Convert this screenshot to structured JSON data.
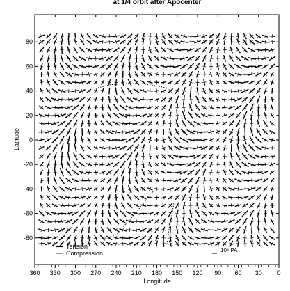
{
  "chart_data": {
    "type": "vector-field",
    "title": "at 1/4 orbit after Apocenter",
    "xlabel": "Longitude",
    "ylabel": "Latitude",
    "xlim": [
      360,
      0
    ],
    "ylim": [
      -90,
      90
    ],
    "x_ticks": [
      360,
      330,
      300,
      270,
      240,
      210,
      180,
      150,
      120,
      90,
      60,
      30,
      0
    ],
    "y_ticks": [
      80,
      60,
      40,
      20,
      0,
      -20,
      -40,
      -60,
      -80
    ],
    "grid": false,
    "legend": {
      "placement": "bottom-left",
      "entries": [
        {
          "name": "Tension",
          "style": "thick"
        },
        {
          "name": "Compression",
          "style": "thin"
        }
      ]
    },
    "scale_label": "10⁵ PA",
    "field": {
      "grid_step_longitude": 10,
      "row_latitudes": [
        84.7,
        80,
        73.5,
        66.5,
        60,
        53.5,
        47,
        40,
        33,
        26.5,
        20,
        13.5,
        6.5,
        0,
        -6.5,
        -13.5,
        -20,
        -26.5,
        -33,
        -40,
        -47,
        -53.5,
        -60,
        -66.5,
        -73.5,
        -80,
        -84.7
      ],
      "shown_by": "cross symbols (tension vs compression magnitude by length)"
    },
    "tracks": [
      {
        "points": [
          [
            270,
            42
          ],
          [
            250,
            45
          ],
          [
            230,
            46
          ],
          [
            210,
            46
          ],
          [
            190,
            45
          ],
          [
            170,
            43
          ],
          [
            160,
            40
          ]
        ]
      },
      {
        "points": [
          [
            245,
            -40
          ],
          [
            235,
            -42
          ],
          [
            220,
            -43
          ],
          [
            205,
            -41
          ],
          [
            200,
            -38
          ]
        ]
      },
      {
        "points": [
          [
            270,
            -74
          ],
          [
            262,
            -79
          ],
          [
            252,
            -81
          ],
          [
            238,
            -76
          ],
          [
            218,
            -64
          ],
          [
            200,
            -52
          ],
          [
            185,
            -42
          ]
        ]
      },
      {
        "points": [
          [
            165,
            -85
          ],
          [
            162,
            -72
          ],
          [
            158,
            -62
          ],
          [
            155,
            -52
          ]
        ]
      }
    ]
  }
}
